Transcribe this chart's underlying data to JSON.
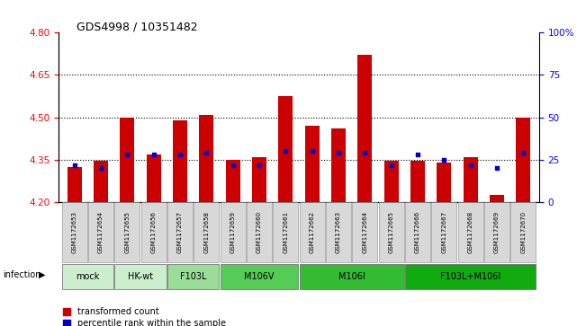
{
  "title": "GDS4998 / 10351482",
  "samples": [
    "GSM1172653",
    "GSM1172654",
    "GSM1172655",
    "GSM1172656",
    "GSM1172657",
    "GSM1172658",
    "GSM1172659",
    "GSM1172660",
    "GSM1172661",
    "GSM1172662",
    "GSM1172663",
    "GSM1172664",
    "GSM1172665",
    "GSM1172666",
    "GSM1172667",
    "GSM1172668",
    "GSM1172669",
    "GSM1172670"
  ],
  "red_values": [
    4.325,
    4.345,
    4.5,
    4.37,
    4.49,
    4.51,
    4.35,
    4.36,
    4.575,
    4.47,
    4.46,
    4.72,
    4.345,
    4.345,
    4.34,
    4.36,
    4.225,
    4.5
  ],
  "blue_values": [
    22,
    20,
    28,
    28,
    28,
    29,
    22,
    22,
    30,
    30,
    29,
    29,
    22,
    28,
    25,
    22,
    20,
    29
  ],
  "ylim_left": [
    4.2,
    4.8
  ],
  "ylim_right": [
    0,
    100
  ],
  "yticks_left": [
    4.2,
    4.35,
    4.5,
    4.65,
    4.8
  ],
  "yticks_right": [
    0,
    25,
    50,
    75,
    100
  ],
  "grid_values": [
    4.35,
    4.5,
    4.65
  ],
  "bar_color": "#cc0000",
  "blue_color": "#0000cc",
  "bar_bottom": 4.2,
  "infection_label": "infection",
  "legend_red": "transformed count",
  "legend_blue": "percentile rank within the sample",
  "group_info": [
    {
      "label": "mock",
      "start": 0,
      "end": 1,
      "color": "#cceecc"
    },
    {
      "label": "HK-wt",
      "start": 2,
      "end": 3,
      "color": "#cceecc"
    },
    {
      "label": "F103L",
      "start": 4,
      "end": 5,
      "color": "#99dd99"
    },
    {
      "label": "M106V",
      "start": 6,
      "end": 8,
      "color": "#55cc55"
    },
    {
      "label": "M106I",
      "start": 9,
      "end": 12,
      "color": "#33bb33"
    },
    {
      "label": "F103L+M106I",
      "start": 13,
      "end": 17,
      "color": "#11aa11"
    }
  ]
}
